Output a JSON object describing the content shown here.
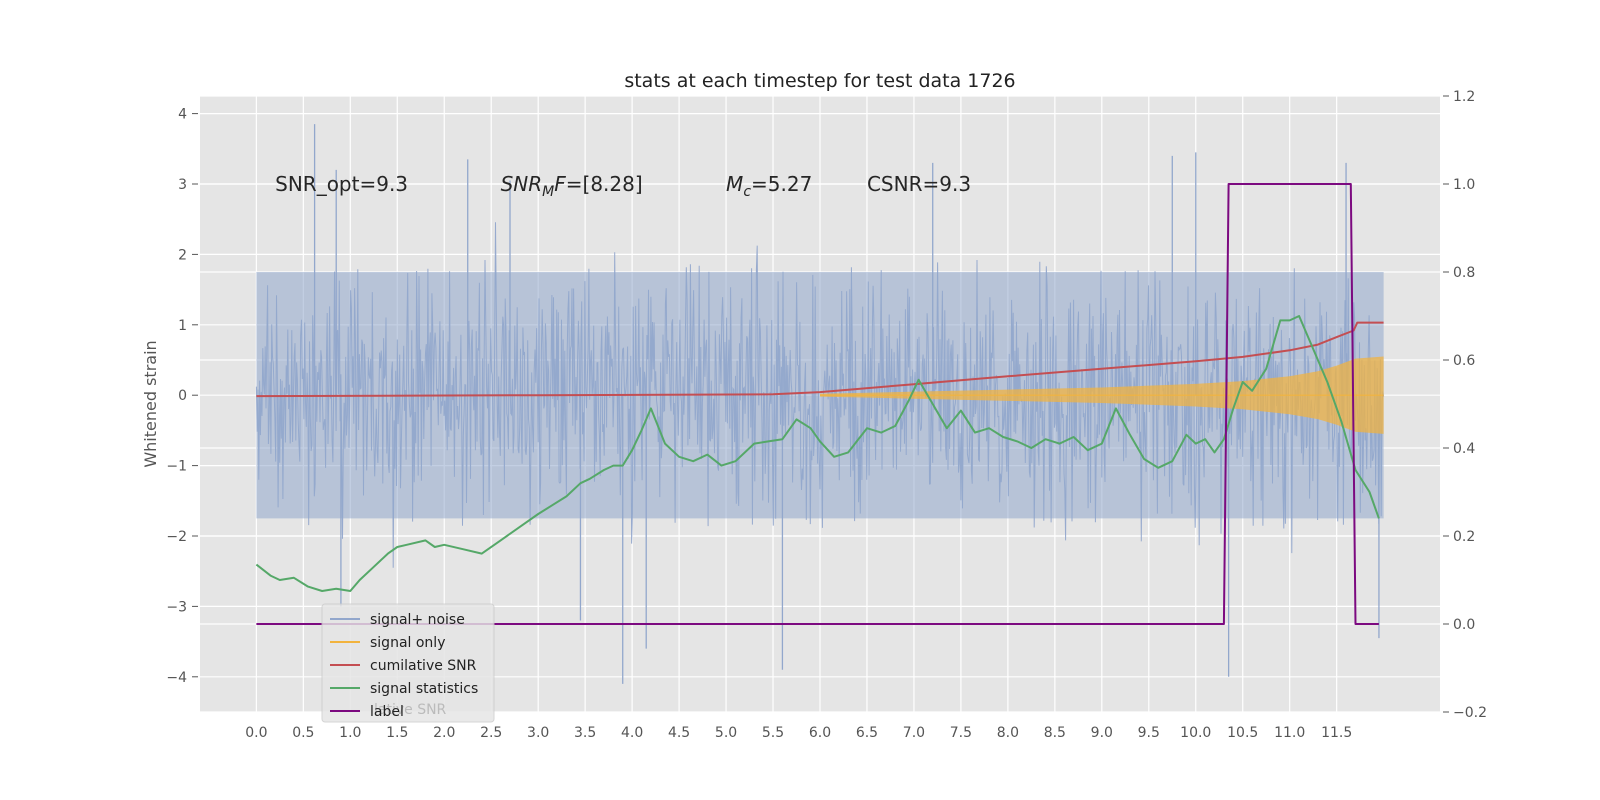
{
  "chart_data": {
    "type": "line",
    "title": "stats at each timestep for test data 1726",
    "xlabel": "",
    "ylabel": "Whitened strain",
    "xlim": [
      -0.6,
      12.6
    ],
    "ylim": [
      -4.5,
      4.25
    ],
    "y2lim": [
      -0.2,
      1.2
    ],
    "grid": true,
    "legend_position": "lower-left",
    "x_ticks": [
      "0.0",
      "0.5",
      "1.0",
      "1.5",
      "2.0",
      "2.5",
      "3.0",
      "3.5",
      "4.0",
      "4.5",
      "5.0",
      "5.5",
      "6.0",
      "6.5",
      "7.0",
      "7.5",
      "8.0",
      "8.5",
      "9.0",
      "9.5",
      "10.0",
      "10.5",
      "11.0",
      "11.5"
    ],
    "y_ticks": [
      "4",
      "3",
      "2",
      "1",
      "0",
      "−1",
      "−2",
      "−3",
      "−4"
    ],
    "y2_ticks": [
      "1.2",
      "1.0",
      "0.8",
      "0.6",
      "0.4",
      "0.2",
      "0.0",
      "−0.2"
    ],
    "annotations": [
      {
        "text": "SNR_opt=9.3",
        "x": 0.2,
        "y": 3.0
      },
      {
        "base": "SNR",
        "sub": "M",
        "rest": "F=[8.28]",
        "x": 2.6,
        "y": 3.0
      },
      {
        "base": "M",
        "sub": "c",
        "rest": "=5.27",
        "x": 5.0,
        "y": 3.0
      },
      {
        "text": "CSNR=9.3",
        "x": 6.5,
        "y": 3.0
      }
    ],
    "ghost_legend_text": "lative SNR",
    "series": [
      {
        "name": "signal+ noise",
        "color": "#92a7cc",
        "axis": "left",
        "x_range": [
          0,
          12.0
        ],
        "typical_amplitude": 1.75,
        "spikes": [
          {
            "x": 0.62,
            "y": 3.85
          },
          {
            "x": 0.85,
            "y": 3.2
          },
          {
            "x": 2.25,
            "y": 3.35
          },
          {
            "x": 2.7,
            "y": 3.05
          },
          {
            "x": 7.2,
            "y": 3.3
          },
          {
            "x": 9.75,
            "y": 3.4
          },
          {
            "x": 10.0,
            "y": 3.45
          },
          {
            "x": 11.6,
            "y": 3.3
          },
          {
            "x": 3.9,
            "y": -4.1
          },
          {
            "x": 4.15,
            "y": -3.6
          },
          {
            "x": 5.6,
            "y": -3.9
          },
          {
            "x": 10.35,
            "y": -4.0
          },
          {
            "x": 11.95,
            "y": -3.45
          },
          {
            "x": 0.9,
            "y": -3.0
          },
          {
            "x": 3.45,
            "y": -3.2
          }
        ]
      },
      {
        "name": "signal only",
        "color": "#f2b33d",
        "axis": "left",
        "envelope": {
          "x": [
            6.0,
            7.0,
            8.0,
            9.0,
            10.0,
            10.5,
            11.0,
            11.3,
            11.5,
            11.7,
            12.0
          ],
          "y": [
            0.02,
            0.05,
            0.08,
            0.11,
            0.16,
            0.2,
            0.27,
            0.34,
            0.42,
            0.52,
            0.55
          ]
        }
      },
      {
        "name": "cumilative SNR",
        "color": "#c44e52",
        "axis": "right",
        "x": [
          0.0,
          3.0,
          5.5,
          6.0,
          7.0,
          8.0,
          9.0,
          10.0,
          10.5,
          11.0,
          11.3,
          11.5,
          11.68,
          11.72,
          12.0
        ],
        "y": [
          0.518,
          0.52,
          0.522,
          0.527,
          0.545,
          0.563,
          0.58,
          0.597,
          0.607,
          0.622,
          0.635,
          0.652,
          0.667,
          0.685,
          0.685
        ]
      },
      {
        "name": "signal statistics",
        "color": "#55a868",
        "axis": "right",
        "x": [
          0.0,
          0.15,
          0.25,
          0.4,
          0.55,
          0.7,
          0.85,
          1.0,
          1.1,
          1.25,
          1.4,
          1.5,
          1.6,
          1.8,
          1.9,
          2.0,
          2.2,
          2.4,
          2.6,
          2.8,
          3.0,
          3.15,
          3.3,
          3.45,
          3.55,
          3.7,
          3.8,
          3.9,
          4.0,
          4.1,
          4.2,
          4.35,
          4.5,
          4.65,
          4.8,
          4.95,
          5.1,
          5.3,
          5.45,
          5.6,
          5.75,
          5.9,
          6.0,
          6.15,
          6.3,
          6.5,
          6.65,
          6.8,
          6.95,
          7.05,
          7.2,
          7.35,
          7.5,
          7.65,
          7.8,
          7.95,
          8.1,
          8.25,
          8.4,
          8.55,
          8.7,
          8.85,
          9.0,
          9.15,
          9.3,
          9.45,
          9.6,
          9.75,
          9.9,
          10.0,
          10.1,
          10.2,
          10.3,
          10.4,
          10.5,
          10.6,
          10.75,
          10.9,
          11.0,
          11.1,
          11.2,
          11.3,
          11.4,
          11.55,
          11.7,
          11.85,
          11.95
        ],
        "y": [
          0.135,
          0.11,
          0.1,
          0.105,
          0.085,
          0.075,
          0.08,
          0.075,
          0.1,
          0.13,
          0.16,
          0.175,
          0.18,
          0.19,
          0.175,
          0.18,
          0.17,
          0.16,
          0.19,
          0.22,
          0.25,
          0.27,
          0.29,
          0.32,
          0.33,
          0.35,
          0.36,
          0.36,
          0.395,
          0.44,
          0.49,
          0.41,
          0.38,
          0.37,
          0.385,
          0.36,
          0.37,
          0.41,
          0.415,
          0.42,
          0.465,
          0.445,
          0.415,
          0.38,
          0.39,
          0.445,
          0.435,
          0.45,
          0.51,
          0.555,
          0.5,
          0.445,
          0.485,
          0.435,
          0.445,
          0.425,
          0.415,
          0.4,
          0.42,
          0.41,
          0.425,
          0.395,
          0.41,
          0.49,
          0.43,
          0.375,
          0.355,
          0.37,
          0.43,
          0.41,
          0.42,
          0.39,
          0.42,
          0.49,
          0.55,
          0.53,
          0.58,
          0.69,
          0.69,
          0.7,
          0.65,
          0.6,
          0.55,
          0.46,
          0.35,
          0.3,
          0.24
        ]
      },
      {
        "name": "label",
        "color": "#7c0a80",
        "axis": "right",
        "x": [
          0.0,
          10.3,
          10.35,
          11.65,
          11.7,
          11.95
        ],
        "y": [
          0.0,
          0.0,
          1.0,
          1.0,
          0.0,
          0.0
        ]
      }
    ]
  }
}
